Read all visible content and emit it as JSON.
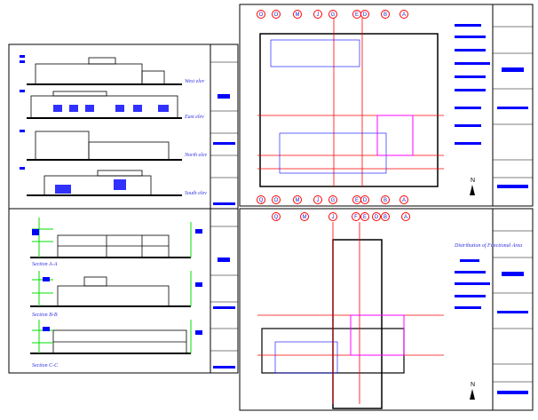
{
  "elevations": {
    "west": "West elev",
    "east": "East elev",
    "north": "North elev",
    "south": "South elev"
  },
  "sections": {
    "aa": "Section A-A",
    "bb": "Section B-B",
    "cc": "Section C-C"
  },
  "plan_legend": {
    "title": "Distribution of Functional Area"
  },
  "grid_top_upper": [
    "O",
    "O",
    "M",
    "J",
    "G",
    "E",
    "D",
    "B",
    "A"
  ],
  "grid_top_lower": [
    "Q",
    "O",
    "M",
    "J",
    "G",
    "E",
    "D",
    "B",
    "A"
  ],
  "grid_bottom_upper": [
    "Q",
    "M",
    "J",
    "F",
    "E",
    "D",
    "B",
    "A"
  ],
  "north_symbol": "N",
  "colors": {
    "line": "#000000",
    "accent_blue": "#0000ff",
    "grid_red": "#ff0000",
    "green": "#00e000",
    "magenta": "#ff00ff"
  }
}
